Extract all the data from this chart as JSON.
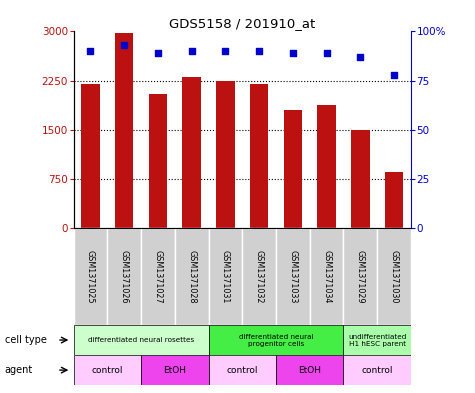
{
  "title": "GDS5158 / 201910_at",
  "samples": [
    "GSM1371025",
    "GSM1371026",
    "GSM1371027",
    "GSM1371028",
    "GSM1371031",
    "GSM1371032",
    "GSM1371033",
    "GSM1371034",
    "GSM1371029",
    "GSM1371030"
  ],
  "bar_values": [
    2200,
    2980,
    2050,
    2300,
    2250,
    2190,
    1800,
    1870,
    1500,
    850
  ],
  "percentile_values": [
    90,
    93,
    89,
    90,
    90,
    90,
    89,
    89,
    87,
    78
  ],
  "ylim_left": [
    0,
    3000
  ],
  "ylim_right": [
    0,
    100
  ],
  "yticks_left": [
    0,
    750,
    1500,
    2250,
    3000
  ],
  "yticks_right": [
    0,
    25,
    50,
    75,
    100
  ],
  "ytick_labels_left": [
    "0",
    "750",
    "1500",
    "2250",
    "3000"
  ],
  "ytick_labels_right": [
    "0",
    "25",
    "50",
    "75",
    "100%"
  ],
  "bar_color": "#bb1111",
  "dot_color": "#0000cc",
  "cell_type_groups": [
    {
      "label": "differentiated neural rosettes",
      "start": 0,
      "end": 4,
      "color": "#ccffcc"
    },
    {
      "label": "differentiated neural\nprogenitor cells",
      "start": 4,
      "end": 8,
      "color": "#44ee44"
    },
    {
      "label": "undifferentiated\nH1 hESC parent",
      "start": 8,
      "end": 10,
      "color": "#aaffaa"
    }
  ],
  "agent_groups": [
    {
      "label": "control",
      "start": 0,
      "end": 2,
      "color": "#ffccff"
    },
    {
      "label": "EtOH",
      "start": 2,
      "end": 4,
      "color": "#ee44ee"
    },
    {
      "label": "control",
      "start": 4,
      "end": 6,
      "color": "#ffccff"
    },
    {
      "label": "EtOH",
      "start": 6,
      "end": 8,
      "color": "#ee44ee"
    },
    {
      "label": "control",
      "start": 8,
      "end": 10,
      "color": "#ffccff"
    }
  ],
  "grid_color": "#888888",
  "bar_width": 0.55
}
